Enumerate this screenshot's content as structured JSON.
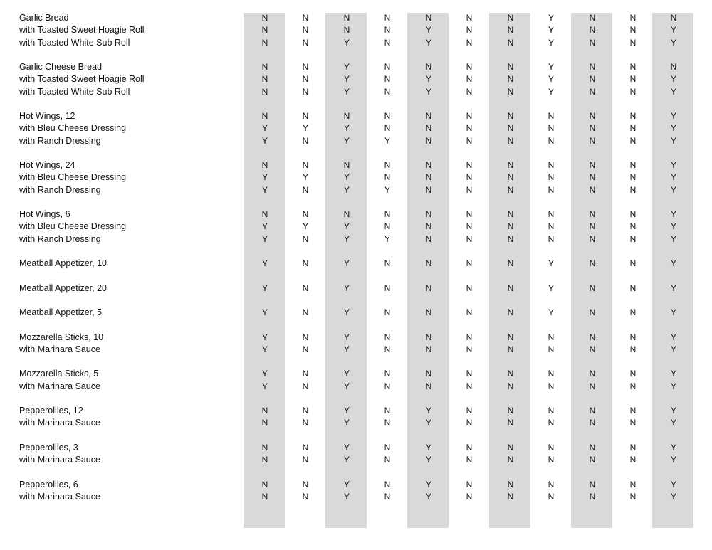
{
  "shade_color": "#d9d9d9",
  "groups": [
    {
      "rows": [
        {
          "label": "Garlic Bread",
          "values": [
            "N",
            "N",
            "N",
            "N",
            "N",
            "N",
            "N",
            "Y",
            "N",
            "N",
            "N"
          ]
        },
        {
          "label": "with Toasted Sweet Hoagie Roll",
          "values": [
            "N",
            "N",
            "N",
            "N",
            "Y",
            "N",
            "N",
            "Y",
            "N",
            "N",
            "Y"
          ]
        },
        {
          "label": "with Toasted White Sub Roll",
          "values": [
            "N",
            "N",
            "Y",
            "N",
            "Y",
            "N",
            "N",
            "Y",
            "N",
            "N",
            "Y"
          ]
        }
      ]
    },
    {
      "rows": [
        {
          "label": "Garlic Cheese Bread",
          "values": [
            "N",
            "N",
            "Y",
            "N",
            "N",
            "N",
            "N",
            "Y",
            "N",
            "N",
            "N"
          ]
        },
        {
          "label": "with Toasted Sweet Hoagie Roll",
          "values": [
            "N",
            "N",
            "Y",
            "N",
            "Y",
            "N",
            "N",
            "Y",
            "N",
            "N",
            "Y"
          ]
        },
        {
          "label": "with Toasted White Sub Roll",
          "values": [
            "N",
            "N",
            "Y",
            "N",
            "Y",
            "N",
            "N",
            "Y",
            "N",
            "N",
            "Y"
          ]
        }
      ]
    },
    {
      "rows": [
        {
          "label": "Hot Wings, 12",
          "values": [
            "N",
            "N",
            "N",
            "N",
            "N",
            "N",
            "N",
            "N",
            "N",
            "N",
            "Y"
          ]
        },
        {
          "label": "with Bleu Cheese Dressing",
          "values": [
            "Y",
            "Y",
            "Y",
            "N",
            "N",
            "N",
            "N",
            "N",
            "N",
            "N",
            "Y"
          ]
        },
        {
          "label": "with Ranch Dressing",
          "values": [
            "Y",
            "N",
            "Y",
            "Y",
            "N",
            "N",
            "N",
            "N",
            "N",
            "N",
            "Y"
          ]
        }
      ]
    },
    {
      "rows": [
        {
          "label": "Hot Wings, 24",
          "values": [
            "N",
            "N",
            "N",
            "N",
            "N",
            "N",
            "N",
            "N",
            "N",
            "N",
            "Y"
          ]
        },
        {
          "label": "with Bleu Cheese Dressing",
          "values": [
            "Y",
            "Y",
            "Y",
            "N",
            "N",
            "N",
            "N",
            "N",
            "N",
            "N",
            "Y"
          ]
        },
        {
          "label": "with Ranch Dressing",
          "values": [
            "Y",
            "N",
            "Y",
            "Y",
            "N",
            "N",
            "N",
            "N",
            "N",
            "N",
            "Y"
          ]
        }
      ]
    },
    {
      "rows": [
        {
          "label": "Hot Wings, 6",
          "values": [
            "N",
            "N",
            "N",
            "N",
            "N",
            "N",
            "N",
            "N",
            "N",
            "N",
            "Y"
          ]
        },
        {
          "label": "with Bleu Cheese Dressing",
          "values": [
            "Y",
            "Y",
            "Y",
            "N",
            "N",
            "N",
            "N",
            "N",
            "N",
            "N",
            "Y"
          ]
        },
        {
          "label": "with Ranch Dressing",
          "values": [
            "Y",
            "N",
            "Y",
            "Y",
            "N",
            "N",
            "N",
            "N",
            "N",
            "N",
            "Y"
          ]
        }
      ]
    },
    {
      "rows": [
        {
          "label": "Meatball Appetizer, 10",
          "values": [
            "Y",
            "N",
            "Y",
            "N",
            "N",
            "N",
            "N",
            "Y",
            "N",
            "N",
            "Y"
          ]
        }
      ]
    },
    {
      "rows": [
        {
          "label": "Meatball Appetizer, 20",
          "values": [
            "Y",
            "N",
            "Y",
            "N",
            "N",
            "N",
            "N",
            "Y",
            "N",
            "N",
            "Y"
          ]
        }
      ]
    },
    {
      "rows": [
        {
          "label": "Meatball Appetizer, 5",
          "values": [
            "Y",
            "N",
            "Y",
            "N",
            "N",
            "N",
            "N",
            "Y",
            "N",
            "N",
            "Y"
          ]
        }
      ]
    },
    {
      "rows": [
        {
          "label": "Mozzarella Sticks, 10",
          "values": [
            "Y",
            "N",
            "Y",
            "N",
            "N",
            "N",
            "N",
            "N",
            "N",
            "N",
            "Y"
          ]
        },
        {
          "label": "with Marinara Sauce",
          "values": [
            "Y",
            "N",
            "Y",
            "N",
            "N",
            "N",
            "N",
            "N",
            "N",
            "N",
            "Y"
          ]
        }
      ]
    },
    {
      "rows": [
        {
          "label": "Mozzarella Sticks, 5",
          "values": [
            "Y",
            "N",
            "Y",
            "N",
            "N",
            "N",
            "N",
            "N",
            "N",
            "N",
            "Y"
          ]
        },
        {
          "label": "with Marinara Sauce",
          "values": [
            "Y",
            "N",
            "Y",
            "N",
            "N",
            "N",
            "N",
            "N",
            "N",
            "N",
            "Y"
          ]
        }
      ]
    },
    {
      "rows": [
        {
          "label": "Pepperollies, 12",
          "values": [
            "N",
            "N",
            "Y",
            "N",
            "Y",
            "N",
            "N",
            "N",
            "N",
            "N",
            "Y"
          ]
        },
        {
          "label": "with Marinara Sauce",
          "values": [
            "N",
            "N",
            "Y",
            "N",
            "Y",
            "N",
            "N",
            "N",
            "N",
            "N",
            "Y"
          ]
        }
      ]
    },
    {
      "rows": [
        {
          "label": "Pepperollies, 3",
          "values": [
            "N",
            "N",
            "Y",
            "N",
            "Y",
            "N",
            "N",
            "N",
            "N",
            "N",
            "Y"
          ]
        },
        {
          "label": "with Marinara Sauce",
          "values": [
            "N",
            "N",
            "Y",
            "N",
            "Y",
            "N",
            "N",
            "N",
            "N",
            "N",
            "Y"
          ]
        }
      ]
    },
    {
      "rows": [
        {
          "label": "Pepperollies, 6",
          "values": [
            "N",
            "N",
            "Y",
            "N",
            "Y",
            "N",
            "N",
            "N",
            "N",
            "N",
            "Y"
          ]
        },
        {
          "label": "with Marinara Sauce",
          "values": [
            "N",
            "N",
            "Y",
            "N",
            "Y",
            "N",
            "N",
            "N",
            "N",
            "N",
            "Y"
          ]
        }
      ]
    }
  ]
}
